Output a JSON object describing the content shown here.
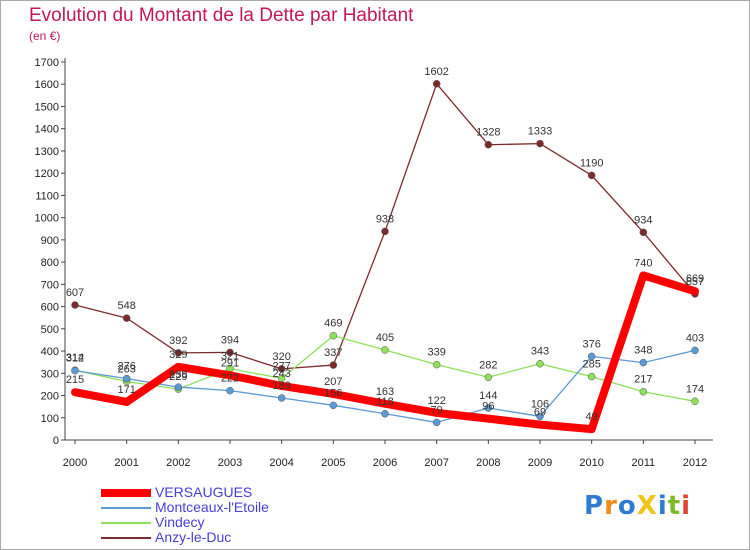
{
  "title": "Evolution du Montant de la Dette par Habitant",
  "subtitle": "(en €)",
  "logo_text": "ProXiti",
  "chart_data": {
    "type": "line",
    "x": [
      "2000",
      "2001",
      "2002",
      "2003",
      "2004",
      "2005",
      "2006",
      "2007",
      "2008",
      "2009",
      "2010",
      "2011",
      "2012"
    ],
    "ylim": [
      0,
      1700
    ],
    "yticks": [
      0,
      100,
      200,
      300,
      400,
      500,
      600,
      700,
      800,
      900,
      1000,
      1100,
      1200,
      1300,
      1400,
      1500,
      1600,
      1700
    ],
    "grid": false,
    "legend_position": "bottom-left",
    "series": [
      {
        "name": "VERSAUGUES",
        "color": "#ff0000",
        "values": [
          215,
          171,
          329,
          291,
          243,
          207,
          163,
          122,
          96,
          69,
          49,
          740,
          669
        ]
      },
      {
        "name": "Montceaux-l'Etoile",
        "color": "#5b9bd5",
        "values": [
          312,
          276,
          238,
          222,
          189,
          156,
          118,
          79,
          144,
          106,
          376,
          348,
          403
        ]
      },
      {
        "name": "Vindecy",
        "color": "#8ee05a",
        "values": [
          314,
          263,
          229,
          321,
          277,
          469,
          405,
          339,
          282,
          343,
          285,
          217,
          174
        ]
      },
      {
        "name": "Anzy-le-Duc",
        "color": "#7b2b2b",
        "values": [
          607,
          548,
          392,
          394,
          320,
          337,
          938,
          1602,
          1328,
          1333,
          1190,
          934,
          657
        ]
      }
    ]
  }
}
